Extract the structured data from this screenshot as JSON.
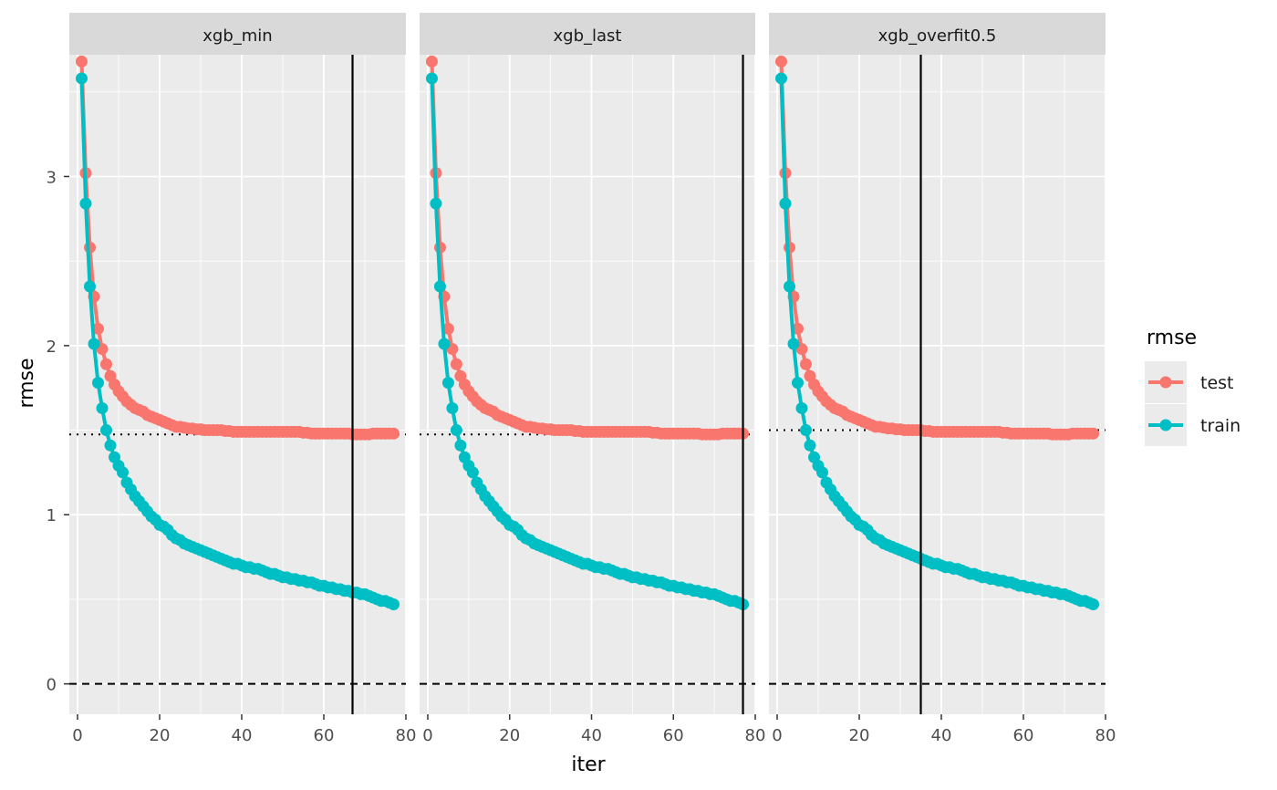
{
  "chart_data": {
    "type": "line",
    "xlabel": "iter",
    "ylabel": "rmse",
    "xlim": [
      -2,
      80
    ],
    "ylim": [
      -0.18,
      3.72
    ],
    "x_ticks": [
      0,
      20,
      40,
      60,
      80
    ],
    "y_ticks": [
      0,
      1,
      2,
      3
    ],
    "x_tick_labels": [
      "0",
      "20",
      "40",
      "60",
      "80"
    ],
    "y_tick_labels": [
      "0",
      "1",
      "2",
      "3"
    ],
    "grid": true,
    "legend": {
      "title": "rmse",
      "position": "right",
      "entries": [
        {
          "label": "test",
          "color": "#F8766D"
        },
        {
          "label": "train",
          "color": "#00BFC4"
        }
      ]
    },
    "x": [
      1,
      2,
      3,
      4,
      5,
      6,
      7,
      8,
      9,
      10,
      11,
      12,
      13,
      14,
      15,
      16,
      17,
      18,
      19,
      20,
      21,
      22,
      23,
      24,
      25,
      26,
      27,
      28,
      29,
      30,
      31,
      32,
      33,
      34,
      35,
      36,
      37,
      38,
      39,
      40,
      41,
      42,
      43,
      44,
      45,
      46,
      47,
      48,
      49,
      50,
      51,
      52,
      53,
      54,
      55,
      56,
      57,
      58,
      59,
      60,
      61,
      62,
      63,
      64,
      65,
      66,
      67,
      68,
      69,
      70,
      71,
      72,
      73,
      74,
      75,
      76,
      77
    ],
    "series": [
      {
        "name": "test",
        "color": "#F8766D",
        "values": [
          3.68,
          3.02,
          2.58,
          2.29,
          2.1,
          1.98,
          1.89,
          1.82,
          1.77,
          1.73,
          1.7,
          1.67,
          1.65,
          1.63,
          1.62,
          1.61,
          1.59,
          1.58,
          1.57,
          1.56,
          1.55,
          1.54,
          1.53,
          1.52,
          1.52,
          1.515,
          1.51,
          1.51,
          1.505,
          1.505,
          1.5,
          1.5,
          1.5,
          1.5,
          1.5,
          1.495,
          1.495,
          1.49,
          1.49,
          1.49,
          1.49,
          1.49,
          1.49,
          1.49,
          1.49,
          1.49,
          1.49,
          1.49,
          1.49,
          1.49,
          1.49,
          1.49,
          1.49,
          1.49,
          1.485,
          1.485,
          1.48,
          1.48,
          1.48,
          1.48,
          1.48,
          1.48,
          1.48,
          1.48,
          1.48,
          1.48,
          1.475,
          1.475,
          1.475,
          1.475,
          1.475,
          1.48,
          1.48,
          1.48,
          1.48,
          1.48,
          1.48
        ]
      },
      {
        "name": "train",
        "color": "#00BFC4",
        "values": [
          3.58,
          2.84,
          2.35,
          2.01,
          1.78,
          1.63,
          1.5,
          1.41,
          1.34,
          1.29,
          1.25,
          1.19,
          1.15,
          1.11,
          1.08,
          1.05,
          1.02,
          0.99,
          0.97,
          0.94,
          0.93,
          0.91,
          0.88,
          0.86,
          0.85,
          0.83,
          0.82,
          0.81,
          0.8,
          0.79,
          0.78,
          0.77,
          0.76,
          0.75,
          0.74,
          0.73,
          0.72,
          0.71,
          0.71,
          0.7,
          0.69,
          0.69,
          0.68,
          0.68,
          0.67,
          0.66,
          0.65,
          0.65,
          0.64,
          0.63,
          0.63,
          0.62,
          0.62,
          0.61,
          0.61,
          0.6,
          0.6,
          0.59,
          0.58,
          0.58,
          0.57,
          0.57,
          0.56,
          0.56,
          0.55,
          0.55,
          0.54,
          0.54,
          0.53,
          0.53,
          0.52,
          0.51,
          0.5,
          0.49,
          0.49,
          0.48,
          0.47
        ]
      }
    ],
    "panels": [
      {
        "title": "xgb_min",
        "vline": 67,
        "hline_dotted": 1.475,
        "hline_dashed": 0
      },
      {
        "title": "xgb_last",
        "vline": 77,
        "hline_dotted": 1.475,
        "hline_dashed": 0
      },
      {
        "title": "xgb_overfit0.5",
        "vline": 35,
        "hline_dotted": 1.5,
        "hline_dashed": 0
      }
    ]
  }
}
